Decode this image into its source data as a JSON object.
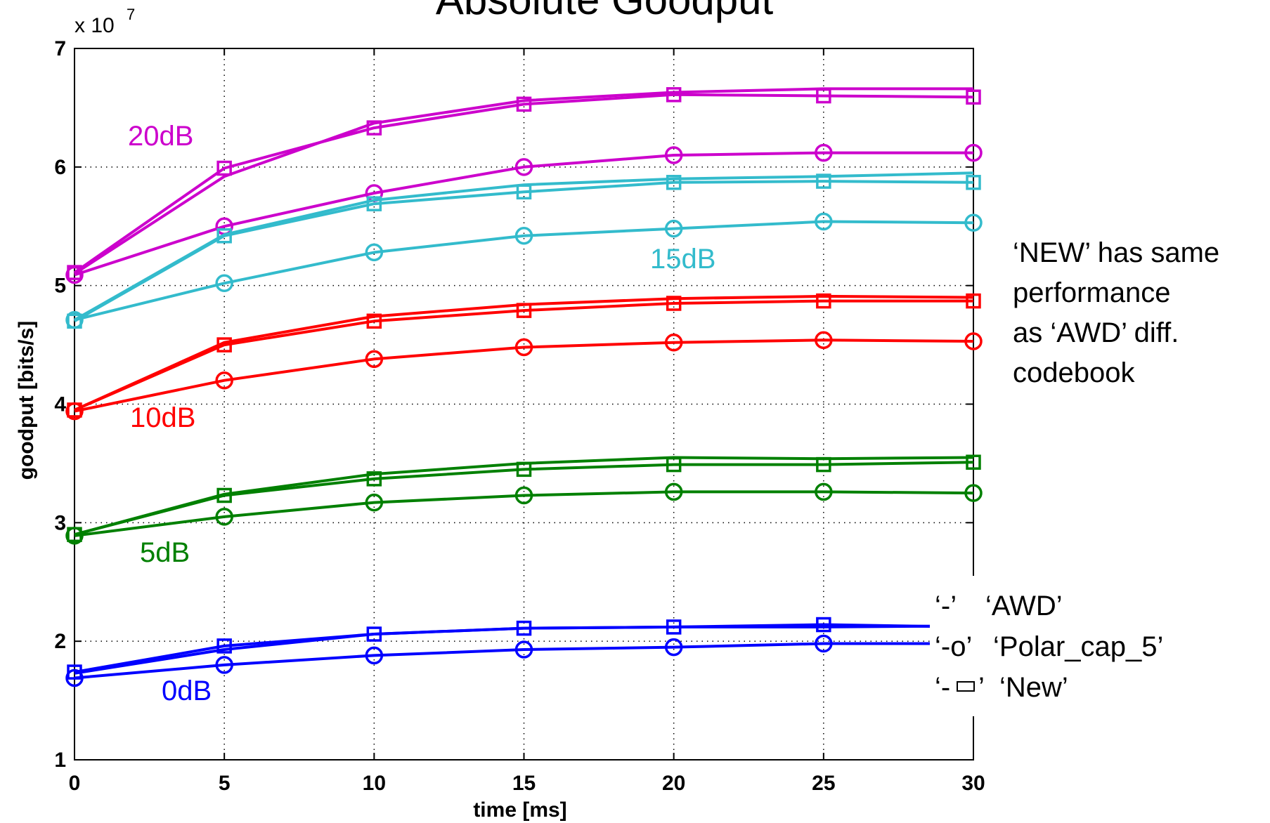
{
  "chart_data": {
    "type": "line",
    "title": "Absolute Goodput",
    "xlabel": "time [ms]",
    "ylabel": "goodput [bits/s]",
    "y_multiplier": {
      "base": "x 10",
      "exponent": "7"
    },
    "xlim": [
      0,
      30
    ],
    "ylim": [
      1,
      7
    ],
    "xticks": [
      "0",
      "5",
      "10",
      "15",
      "20",
      "25",
      "30"
    ],
    "yticks": [
      "1",
      "2",
      "3",
      "4",
      "5",
      "6",
      "7"
    ],
    "x": [
      0,
      5,
      10,
      15,
      20,
      25,
      30
    ],
    "grid": true,
    "groups": [
      {
        "label": "20dB",
        "color": "#cc00cc"
      },
      {
        "label": "15dB",
        "color": "#33bbcc"
      },
      {
        "label": "10dB",
        "color": "#ff0000"
      },
      {
        "label": "5dB",
        "color": "#008000"
      },
      {
        "label": "0dB",
        "color": "#0000ff"
      }
    ],
    "series": [
      {
        "group": "20dB",
        "style": "line",
        "values": [
          5.1,
          5.92,
          6.37,
          6.56,
          6.63,
          6.66,
          6.66
        ]
      },
      {
        "group": "20dB",
        "style": "circle",
        "values": [
          5.09,
          5.5,
          5.78,
          6.0,
          6.1,
          6.12,
          6.12
        ]
      },
      {
        "group": "20dB",
        "style": "square",
        "values": [
          5.11,
          5.99,
          6.33,
          6.53,
          6.61,
          6.6,
          6.59
        ]
      },
      {
        "group": "15dB",
        "style": "line",
        "values": [
          4.71,
          5.43,
          5.72,
          5.85,
          5.9,
          5.92,
          5.95
        ]
      },
      {
        "group": "15dB",
        "style": "circle",
        "values": [
          4.71,
          5.02,
          5.28,
          5.42,
          5.48,
          5.54,
          5.53
        ]
      },
      {
        "group": "15dB",
        "style": "square",
        "values": [
          4.7,
          5.42,
          5.69,
          5.79,
          5.87,
          5.88,
          5.87
        ]
      },
      {
        "group": "10dB",
        "style": "line",
        "values": [
          3.95,
          4.52,
          4.74,
          4.84,
          4.89,
          4.91,
          4.9
        ]
      },
      {
        "group": "10dB",
        "style": "circle",
        "values": [
          3.94,
          4.2,
          4.38,
          4.48,
          4.52,
          4.54,
          4.53
        ]
      },
      {
        "group": "10dB",
        "style": "square",
        "values": [
          3.95,
          4.5,
          4.7,
          4.79,
          4.85,
          4.87,
          4.87
        ]
      },
      {
        "group": "5dB",
        "style": "line",
        "values": [
          2.9,
          3.24,
          3.41,
          3.5,
          3.55,
          3.54,
          3.55
        ]
      },
      {
        "group": "5dB",
        "style": "circle",
        "values": [
          2.89,
          3.05,
          3.17,
          3.23,
          3.26,
          3.26,
          3.25
        ]
      },
      {
        "group": "5dB",
        "style": "square",
        "values": [
          2.9,
          3.23,
          3.37,
          3.45,
          3.49,
          3.49,
          3.51
        ]
      },
      {
        "group": "0dB",
        "style": "line",
        "values": [
          1.73,
          1.93,
          2.06,
          2.11,
          2.12,
          2.12,
          2.13
        ]
      },
      {
        "group": "0dB",
        "style": "circle",
        "values": [
          1.69,
          1.8,
          1.88,
          1.93,
          1.95,
          1.98,
          1.98
        ]
      },
      {
        "group": "0dB",
        "style": "square",
        "values": [
          1.74,
          1.96,
          2.06,
          2.11,
          2.12,
          2.14,
          2.12
        ]
      }
    ],
    "legend": {
      "placement": "lower-right",
      "entries": [
        {
          "marker_text": "‘-’",
          "label": "‘AWD’",
          "style": "line"
        },
        {
          "marker_text": "‘-o’",
          "label": "‘Polar_cap_5’",
          "style": "circle"
        },
        {
          "marker_text_left": "‘-",
          "marker_text_right": "’",
          "label": "‘New’",
          "style": "square"
        }
      ]
    },
    "annotation": [
      "‘NEW’ has same",
      "performance",
      "as ‘AWD’ diff.",
      "codebook"
    ]
  }
}
